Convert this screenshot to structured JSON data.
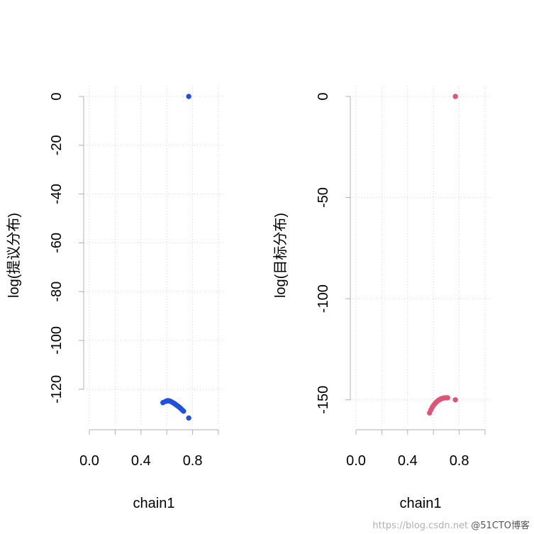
{
  "chart_data": [
    {
      "type": "scatter",
      "xlabel": "chain1",
      "ylabel": "log(提议分布)",
      "xlim": [
        0,
        1
      ],
      "ylim": [
        -134,
        0
      ],
      "x_ticks": [
        0.0,
        0.4,
        0.8
      ],
      "x_tick_labels": [
        "0.0",
        "0.4",
        "0.8"
      ],
      "y_ticks": [
        0,
        -20,
        -40,
        -60,
        -80,
        -100,
        -120
      ],
      "y_tick_labels": [
        "0",
        "-20",
        "-40",
        "-60",
        "-80",
        "-100",
        "-120"
      ],
      "grid": true,
      "color": "#2150e0",
      "points": [
        {
          "x": 0.77,
          "y": 0
        },
        {
          "x": 0.57,
          "y": -125.5
        },
        {
          "x": 0.59,
          "y": -125.0
        },
        {
          "x": 0.6,
          "y": -124.8
        },
        {
          "x": 0.61,
          "y": -124.7
        },
        {
          "x": 0.62,
          "y": -124.8
        },
        {
          "x": 0.63,
          "y": -125.0
        },
        {
          "x": 0.64,
          "y": -125.3
        },
        {
          "x": 0.65,
          "y": -125.6
        },
        {
          "x": 0.66,
          "y": -125.9
        },
        {
          "x": 0.67,
          "y": -126.3
        },
        {
          "x": 0.68,
          "y": -126.7
        },
        {
          "x": 0.69,
          "y": -127.1
        },
        {
          "x": 0.7,
          "y": -127.5
        },
        {
          "x": 0.71,
          "y": -128.0
        },
        {
          "x": 0.72,
          "y": -128.5
        },
        {
          "x": 0.73,
          "y": -129.0
        },
        {
          "x": 0.77,
          "y": -131.8
        }
      ]
    },
    {
      "type": "scatter",
      "xlabel": "chain1",
      "ylabel": "log(目标分布)",
      "xlim": [
        0,
        1
      ],
      "ylim": [
        -162,
        0
      ],
      "x_ticks": [
        0.0,
        0.4,
        0.8
      ],
      "x_tick_labels": [
        "0.0",
        "0.4",
        "0.8"
      ],
      "y_ticks": [
        0,
        -50,
        -100,
        -150
      ],
      "y_tick_labels": [
        "0",
        "-50",
        "-100",
        "-150"
      ],
      "grid": true,
      "color": "#dd5577",
      "points": [
        {
          "x": 0.77,
          "y": 0
        },
        {
          "x": 0.57,
          "y": -156.5
        },
        {
          "x": 0.58,
          "y": -155.0
        },
        {
          "x": 0.59,
          "y": -153.8
        },
        {
          "x": 0.6,
          "y": -152.8
        },
        {
          "x": 0.61,
          "y": -152.0
        },
        {
          "x": 0.62,
          "y": -151.3
        },
        {
          "x": 0.63,
          "y": -150.7
        },
        {
          "x": 0.64,
          "y": -150.2
        },
        {
          "x": 0.65,
          "y": -149.8
        },
        {
          "x": 0.66,
          "y": -149.5
        },
        {
          "x": 0.67,
          "y": -149.3
        },
        {
          "x": 0.68,
          "y": -149.1
        },
        {
          "x": 0.69,
          "y": -149.0
        },
        {
          "x": 0.7,
          "y": -149.0
        },
        {
          "x": 0.71,
          "y": -149.0
        },
        {
          "x": 0.77,
          "y": -150.0
        }
      ]
    }
  ],
  "watermark": {
    "url": "https://blog.csdn.net",
    "brand": "@51CTO博客"
  }
}
